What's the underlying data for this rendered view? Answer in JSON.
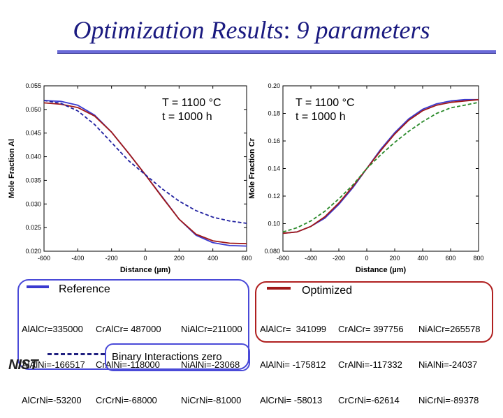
{
  "title_parts": {
    "main": "Optimization Results",
    "sep": ":",
    "rest": " 9 parameters"
  },
  "logo_text": "NIST",
  "colors": {
    "reference": "#3a3ad0",
    "optimized": "#a01818",
    "binary_zero": "#2020a0",
    "title": "#1a1a80"
  },
  "chart_data": [
    {
      "type": "line",
      "annotation": [
        "T = 1100 °C",
        "t = 1000 h"
      ],
      "xlabel": "Distance (µm)",
      "ylabel": "Mole Fraction Al",
      "xlim": [
        -600,
        600
      ],
      "ylim": [
        0.02,
        0.055
      ],
      "xticks": [
        "-600",
        "-400",
        "-200",
        "0",
        "200",
        "400",
        "600"
      ],
      "yticks": [
        "0.020",
        "0.025",
        "0.030",
        "0.035",
        "0.040",
        "0.045",
        "0.050",
        "0.055"
      ],
      "x": [
        -600,
        -500,
        -400,
        -300,
        -200,
        -100,
        0,
        100,
        200,
        300,
        400,
        500,
        600
      ],
      "series": [
        {
          "name": "Reference",
          "style": "solid",
          "color": "#3a3ad0",
          "values": [
            0.0519,
            0.0517,
            0.0509,
            0.0488,
            0.0452,
            0.0408,
            0.0362,
            0.0315,
            0.0268,
            0.0234,
            0.0218,
            0.0212,
            0.0211
          ]
        },
        {
          "name": "Optimized",
          "style": "solid",
          "color": "#a01818",
          "values": [
            0.0514,
            0.0511,
            0.0504,
            0.0486,
            0.0452,
            0.0408,
            0.0362,
            0.0314,
            0.0268,
            0.0236,
            0.0222,
            0.0217,
            0.0216
          ]
        },
        {
          "name": "Binary Interactions zero",
          "style": "dashed",
          "color": "#2020a0",
          "values": [
            0.0519,
            0.0513,
            0.0497,
            0.0468,
            0.043,
            0.0392,
            0.0362,
            0.0332,
            0.0306,
            0.0286,
            0.0272,
            0.0264,
            0.0259
          ]
        }
      ]
    },
    {
      "type": "line",
      "annotation": [
        "T = 1100 °C",
        "t = 1000 h"
      ],
      "xlabel": "Distance (µm)",
      "ylabel": "Mole Fraction Cr",
      "xlim": [
        -600,
        800
      ],
      "ylim": [
        0.08,
        0.2
      ],
      "xticks": [
        "-600",
        "-400",
        "-200",
        "0",
        "200",
        "400",
        "600",
        "800"
      ],
      "yticks": [
        "0.080",
        "0.10",
        "0.12",
        "0.14",
        "0.16",
        "0.18",
        "0.20"
      ],
      "x": [
        -600,
        -500,
        -400,
        -300,
        -200,
        -100,
        0,
        100,
        200,
        300,
        400,
        500,
        600,
        700,
        800
      ],
      "series": [
        {
          "name": "Reference",
          "style": "solid",
          "color": "#3a3ad0",
          "values": [
            0.093,
            0.094,
            0.098,
            0.104,
            0.114,
            0.126,
            0.14,
            0.154,
            0.166,
            0.176,
            0.183,
            0.187,
            0.189,
            0.19,
            0.19
          ]
        },
        {
          "name": "Optimized",
          "style": "solid",
          "color": "#a01818",
          "values": [
            0.093,
            0.094,
            0.098,
            0.105,
            0.115,
            0.127,
            0.14,
            0.153,
            0.165,
            0.175,
            0.182,
            0.186,
            0.188,
            0.189,
            0.19
          ]
        },
        {
          "name": "Binary Interactions zero",
          "style": "dashed",
          "color": "#2a8a2a",
          "values": [
            0.094,
            0.097,
            0.102,
            0.109,
            0.118,
            0.128,
            0.14,
            0.15,
            0.159,
            0.167,
            0.174,
            0.18,
            0.184,
            0.186,
            0.188
          ]
        }
      ]
    }
  ],
  "legend": {
    "reference_label": "Reference",
    "optimized_label": "Optimized",
    "binary_zero_label": "Binary Interactions zero"
  },
  "reference_params": {
    "col1": [
      "AlAlCr=335000",
      "AlAlNi=-166517",
      "AlCrNi=-53200"
    ],
    "col2": [
      "CrAlCr= 487000",
      "CrAlNi=-118000",
      "CrCrNi=-68000"
    ],
    "col3": [
      "NiAlCr=211000",
      "NiAlNi=-23068",
      "NiCrNi=-81000"
    ]
  },
  "optimized_params": {
    "col1": [
      "AlAlCr=  341099",
      "AlAlNi= -175812",
      "AlCrNi= -58013"
    ],
    "col2": [
      "CrAlCr= 397756",
      "CrAlNi=-117332",
      "CrCrNi=-62614"
    ],
    "col3": [
      "NiAlCr=265578",
      "NiAlNi=-24037",
      "NiCrNi=-89378"
    ]
  }
}
